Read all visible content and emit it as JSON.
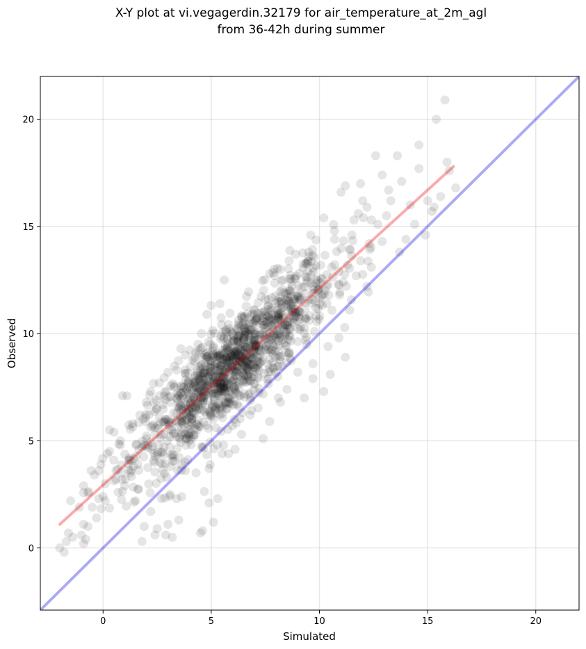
{
  "chart_data": {
    "type": "scatter",
    "title": [
      "X-Y plot at vi.vegagerdin.32179 for air_temperature_at_2m_agl",
      "from 36-42h during summer"
    ],
    "xlabel": "Simulated",
    "ylabel": "Observed",
    "xlim": [
      -2.9,
      22
    ],
    "ylim": [
      -2.9,
      22
    ],
    "xticks": [
      0,
      5,
      10,
      15,
      20
    ],
    "yticks": [
      0,
      5,
      10,
      15,
      20
    ],
    "grid": true,
    "point_color": "#000000",
    "point_opacity": 0.1,
    "identity_line": {
      "from": [
        -2.9,
        -2.9
      ],
      "to": [
        22,
        22
      ],
      "color": "#0000dd",
      "opacity": 0.33
    },
    "fit_line": {
      "from": [
        -2,
        1.1
      ],
      "to": [
        16.2,
        17.8
      ],
      "color": "#ee0000",
      "opacity": 0.33
    },
    "points": [
      [
        -2.0,
        0.0
      ],
      [
        -1.8,
        -0.2
      ],
      [
        -1.7,
        0.3
      ],
      [
        -1.6,
        0.7
      ],
      [
        -1.5,
        2.2
      ],
      [
        -1.4,
        0.5
      ],
      [
        -1.1,
        1.9
      ],
      [
        -1.0,
        0.6
      ],
      [
        -0.9,
        0.2
      ],
      [
        -0.9,
        1.1
      ],
      [
        -0.9,
        2.9
      ],
      [
        -0.8,
        0.4
      ],
      [
        -0.7,
        1.0
      ],
      [
        -0.5,
        1.9
      ],
      [
        -0.4,
        3.4
      ],
      [
        -0.3,
        1.4
      ],
      [
        -0.2,
        3.6
      ],
      [
        -0.2,
        2.3
      ],
      [
        0.0,
        2.4
      ],
      [
        0.1,
        3.0
      ],
      [
        0.1,
        2.2
      ],
      [
        -0.1,
        3.9
      ],
      [
        0.2,
        4.4
      ],
      [
        0.3,
        5.5
      ],
      [
        0.5,
        4.1
      ],
      [
        0.6,
        3.2
      ],
      [
        0.7,
        2.6
      ],
      [
        0.9,
        7.1
      ],
      [
        1.1,
        7.1
      ],
      [
        0.8,
        5.0
      ],
      [
        1.5,
        2.2
      ],
      [
        1.8,
        0.3
      ],
      [
        1.9,
        1.0
      ],
      [
        2.2,
        1.7
      ],
      [
        2.4,
        0.6
      ],
      [
        2.5,
        0.9
      ],
      [
        2.9,
        0.6
      ],
      [
        3.0,
        1.1
      ],
      [
        3.2,
        0.5
      ],
      [
        3.5,
        1.3
      ],
      [
        3.4,
        2.3
      ],
      [
        2.2,
        7.3
      ],
      [
        2.6,
        7.7
      ],
      [
        3.0,
        8.2
      ],
      [
        3.4,
        8.3
      ],
      [
        3.6,
        9.3
      ],
      [
        3.8,
        9.0
      ],
      [
        4.5,
        0.7
      ],
      [
        4.6,
        0.8
      ],
      [
        4.9,
        2.1
      ],
      [
        5.1,
        1.2
      ],
      [
        5.3,
        2.3
      ],
      [
        4.8,
        10.9
      ],
      [
        5.4,
        11.4
      ],
      [
        5.6,
        12.5
      ],
      [
        5.8,
        4.4
      ],
      [
        6.1,
        4.6
      ],
      [
        7.4,
        5.1
      ],
      [
        7.7,
        5.9
      ],
      [
        8.2,
        6.8
      ],
      [
        7.7,
        12.8
      ],
      [
        7.9,
        13.0
      ],
      [
        8.6,
        13.4
      ],
      [
        8.9,
        13.7
      ],
      [
        9.5,
        13.8
      ],
      [
        9.6,
        14.6
      ],
      [
        9.3,
        7.0
      ],
      [
        9.7,
        7.9
      ],
      [
        10.2,
        7.3
      ],
      [
        10.5,
        8.1
      ],
      [
        10.9,
        9.8
      ],
      [
        11.2,
        8.9
      ],
      [
        10.2,
        15.4
      ],
      [
        11.0,
        16.6
      ],
      [
        11.2,
        16.9
      ],
      [
        11.6,
        15.3
      ],
      [
        11.8,
        15.6
      ],
      [
        11.9,
        17.0
      ],
      [
        12.0,
        16.2
      ],
      [
        12.2,
        15.9
      ],
      [
        12.4,
        15.3
      ],
      [
        12.6,
        18.3
      ],
      [
        12.9,
        17.4
      ],
      [
        12.9,
        14.3
      ],
      [
        13.1,
        15.5
      ],
      [
        13.3,
        16.2
      ],
      [
        13.6,
        18.3
      ],
      [
        13.8,
        17.1
      ],
      [
        13.7,
        13.8
      ],
      [
        14.0,
        14.4
      ],
      [
        14.2,
        16.0
      ],
      [
        14.6,
        18.8
      ],
      [
        14.6,
        17.7
      ],
      [
        14.4,
        15.1
      ],
      [
        15.0,
        16.2
      ],
      [
        15.2,
        15.7
      ],
      [
        15.4,
        20.0
      ],
      [
        15.6,
        16.4
      ],
      [
        15.8,
        20.9
      ],
      [
        15.9,
        18.0
      ],
      [
        16.0,
        17.6
      ],
      [
        16.3,
        16.8
      ],
      [
        14.9,
        14.6
      ],
      [
        15.3,
        15.9
      ],
      [
        12.4,
        13.1
      ],
      [
        12.2,
        12.2
      ],
      [
        11.4,
        11.1
      ],
      [
        10.4,
        9.4
      ],
      [
        9.7,
        8.6
      ],
      [
        9.0,
        8.2
      ],
      [
        8.5,
        7.4
      ],
      [
        8.1,
        7.0
      ],
      [
        6.8,
        6.2
      ],
      [
        6.4,
        5.3
      ],
      [
        5.5,
        4.4
      ],
      [
        4.9,
        3.7
      ],
      [
        4.3,
        3.5
      ],
      [
        3.8,
        3.6
      ],
      [
        3.1,
        2.5
      ],
      [
        2.7,
        2.3
      ],
      [
        1.6,
        3.9
      ],
      [
        1.3,
        3.6
      ],
      [
        1.2,
        4.2
      ],
      [
        1.9,
        4.8
      ],
      [
        2.4,
        5.6
      ],
      [
        2.8,
        5.9
      ],
      [
        1.7,
        6.2
      ],
      [
        2.0,
        6.8
      ],
      [
        2.6,
        7.1
      ],
      [
        0.3,
        4.5
      ],
      [
        0.5,
        5.4
      ],
      [
        0.8,
        4.8
      ],
      [
        11.5,
        14.6
      ],
      [
        11.9,
        13.4
      ],
      [
        12.3,
        14.2
      ],
      [
        12.7,
        15.1
      ],
      [
        13.2,
        16.7
      ],
      [
        10.7,
        14.4
      ],
      [
        10.9,
        12.9
      ],
      [
        11.3,
        13.2
      ],
      [
        11.7,
        12.7
      ],
      [
        11.1,
        12.4
      ],
      [
        10.4,
        12.3
      ],
      [
        9.8,
        11.5
      ],
      [
        9.1,
        11.0
      ],
      [
        8.4,
        10.4
      ],
      [
        7.8,
        9.8
      ],
      [
        7.2,
        9.4
      ],
      [
        6.6,
        9.0
      ],
      [
        6.0,
        8.7
      ],
      [
        5.4,
        8.2
      ],
      [
        4.8,
        7.6
      ],
      [
        4.2,
        7.0
      ],
      [
        3.6,
        6.6
      ],
      [
        3.0,
        6.0
      ],
      [
        2.4,
        5.3
      ],
      [
        1.8,
        4.7
      ],
      [
        1.2,
        4.1
      ],
      [
        0.6,
        3.6
      ]
    ],
    "cloud": {
      "center": [
        6.0,
        8.6
      ],
      "sd_x": 2.3,
      "sd_y": 2.4,
      "slope": 0.92,
      "intercept": 2.95,
      "residual_sd": 1.15,
      "count": 1250
    }
  }
}
